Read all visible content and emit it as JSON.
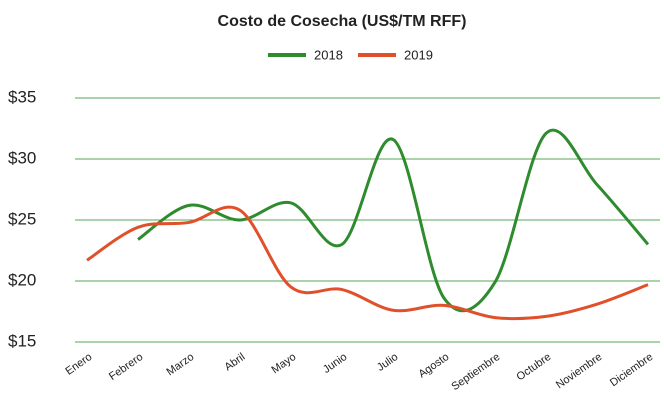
{
  "chart_data": {
    "type": "line",
    "title": "Costo de Cosecha (US$/TM RFF)",
    "categories": [
      "Enero",
      "Febrero",
      "Marzo",
      "Abril",
      "Mayo",
      "Junio",
      "Julio",
      "Agosto",
      "Septiembre",
      "Octubre",
      "Noviembre",
      "Diciembre"
    ],
    "series": [
      {
        "name": "2018",
        "color": "#2e8b2e",
        "values": [
          null,
          23.4,
          26.2,
          25,
          26.4,
          23,
          31.6,
          18.6,
          19.9,
          32.1,
          27.9,
          23
        ]
      },
      {
        "name": "2019",
        "color": "#e0502a",
        "values": [
          21.7,
          24.4,
          24.8,
          25.8,
          19.5,
          19.3,
          17.6,
          18,
          17,
          17.1,
          18.1,
          19.7
        ]
      }
    ],
    "ylim": [
      15,
      35
    ],
    "yticks": [
      {
        "value": 15,
        "label": "$15"
      },
      {
        "value": 20,
        "label": "$20"
      },
      {
        "value": 25,
        "label": "$25"
      },
      {
        "value": 30,
        "label": "$30"
      },
      {
        "value": 35,
        "label": "$35"
      }
    ],
    "grid": true,
    "legend": "top"
  }
}
